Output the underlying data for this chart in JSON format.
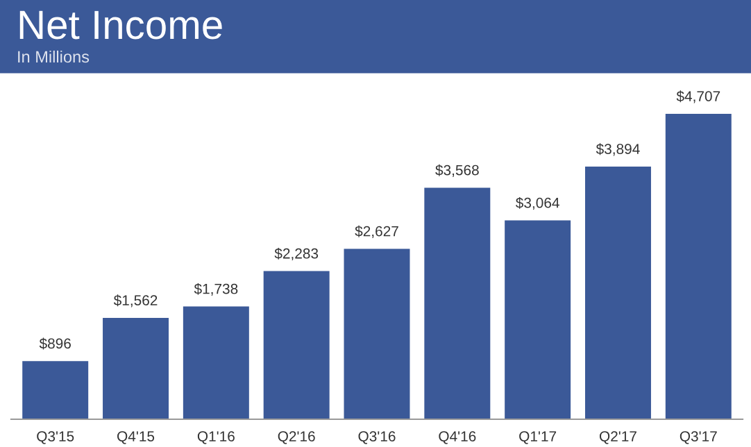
{
  "chart_data": {
    "type": "bar",
    "title": "Net Income",
    "subtitle": "In Millions",
    "categories": [
      "Q3'15",
      "Q4'15",
      "Q1'16",
      "Q2'16",
      "Q3'16",
      "Q4'16",
      "Q1'17",
      "Q2'17",
      "Q3'17"
    ],
    "values": [
      896,
      1562,
      1738,
      2283,
      2627,
      3568,
      3064,
      3894,
      4707
    ],
    "value_labels": [
      "$896",
      "$1,562",
      "$1,738",
      "$2,283",
      "$2,627",
      "$3,568",
      "$3,064",
      "$3,894",
      "$4,707"
    ],
    "color": "#3b5998",
    "grid": false,
    "legend": false
  }
}
